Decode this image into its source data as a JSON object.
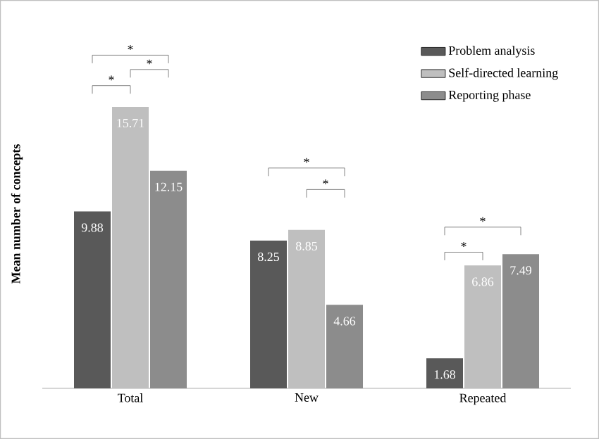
{
  "chart_data": {
    "type": "bar",
    "ylabel": "Mean number of concepts",
    "categories": [
      "Total",
      "New",
      "Repeated"
    ],
    "series": [
      {
        "name": "Problem analysis",
        "color": "#595959",
        "values": [
          9.88,
          8.25,
          1.68
        ]
      },
      {
        "name": "Self-directed learning",
        "color": "#bfbfbf",
        "values": [
          15.71,
          8.85,
          6.86
        ]
      },
      {
        "name": "Reporting phase",
        "color": "#8c8c8c",
        "values": [
          12.15,
          4.66,
          7.49
        ]
      }
    ],
    "data_labels": true,
    "legend": "top right",
    "grid": false,
    "annotations": [
      "*",
      "*",
      "*",
      "*",
      "*",
      "*",
      "*"
    ]
  }
}
